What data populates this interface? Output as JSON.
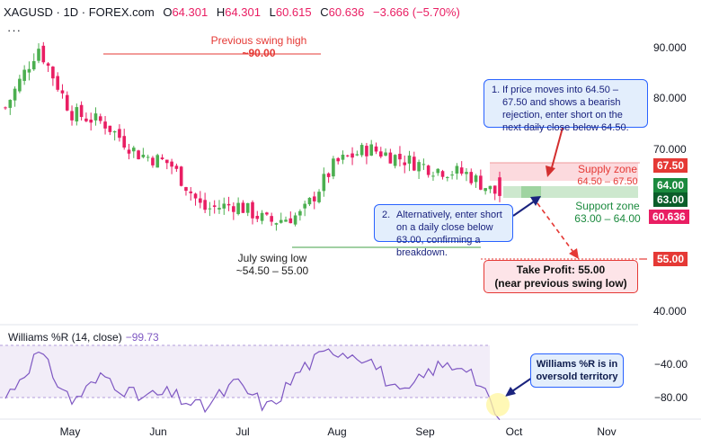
{
  "header": {
    "symbol": "XAGUSD",
    "sep1": "·",
    "interval": "1D",
    "sep2": "·",
    "source": "FOREX.com",
    "o_label": "O",
    "o": "64.301",
    "h_label": "H",
    "h": "64.301",
    "l_label": "L",
    "l": "60.615",
    "c_label": "C",
    "c": "60.636",
    "change": "−3.666 (−5.70%)",
    "more": "···"
  },
  "williams": {
    "label": "Williams %R (14, close)",
    "value": "−99.73"
  },
  "annotations": {
    "prev_high_line1": "Previous swing high",
    "prev_high_line2": "~90.00",
    "july_low_line1": "July swing low",
    "july_low_line2": "~54.50 – 55.00",
    "supply_line1": "Supply zone",
    "supply_line2": "64.50 – 67.50",
    "support_line1": "Support zone",
    "support_line2": "63.00 – 64.00",
    "note1_num": "1.",
    "note1_text": "If price moves into 64.50 – 67.50 and shows a bearish rejection, enter short on the next daily close below 64.50.",
    "note2_num": "2.",
    "note2_text": "Alternatively, enter short on a daily close below 63.00, confirming a breakdown.",
    "tp_line1": "Take Profit: 55.00",
    "tp_line2": "(near previous swing low)",
    "note3_text": "Williams %R is in oversold territory"
  },
  "price_axis": {
    "ticks": [
      "90.000",
      "80.000",
      "70.000",
      "40.000"
    ]
  },
  "price_tags": {
    "supply": "67.50",
    "z64": "64.00",
    "z63": "63.00",
    "last": "60.636",
    "tp": "55.00"
  },
  "wr_axis": {
    "ticks": [
      "−40.00",
      "−80.00"
    ]
  },
  "months": [
    "May",
    "Jun",
    "Jul",
    "Aug",
    "Sep",
    "Oct",
    "Nov"
  ],
  "colors": {
    "up": "#26a69a",
    "down": "#ef5350",
    "up_candle": "#4caf50",
    "down_candle": "#e91e63",
    "wr_line": "#7e57c2",
    "note_border": "#2962ff"
  },
  "chart_data": [
    {
      "type": "candlestick",
      "symbol": "XAGUSD",
      "interval": "1D",
      "x_months": [
        "May",
        "Jun",
        "Jul",
        "Aug",
        "Sep",
        "Oct",
        "Nov"
      ],
      "y_ticks": [
        40,
        70,
        80,
        90
      ],
      "approx_close_path": [
        [
          "May",
          78
        ],
        [
          "mid-May",
          90
        ],
        [
          "late-May",
          77
        ],
        [
          "Jun",
          75
        ],
        [
          "mid-Jun",
          69
        ],
        [
          "late-Jun",
          67
        ],
        [
          "Jul",
          58
        ],
        [
          "mid-Jul",
          59
        ],
        [
          "late-Jul",
          55.5
        ],
        [
          "Aug",
          57
        ],
        [
          "mid-Aug",
          67
        ],
        [
          "late-Aug",
          70
        ],
        [
          "Sep",
          68
        ],
        [
          "mid-Sep",
          66
        ],
        [
          "late-Sep",
          65
        ],
        [
          "Oct",
          60.636
        ]
      ],
      "levels": {
        "previous_swing_high": 90.0,
        "supply_zone": [
          64.5,
          67.5
        ],
        "support_zone": [
          63.0,
          64.0
        ],
        "take_profit": 55.0,
        "july_swing_low": [
          54.5,
          55.0
        ]
      },
      "last": {
        "open": 64.301,
        "high": 64.301,
        "low": 60.615,
        "close": 60.636
      }
    },
    {
      "type": "line",
      "name": "Williams %R (14, close)",
      "y_ticks": [
        -40,
        -80
      ],
      "approx_values": [
        [
          "May",
          -70
        ],
        [
          "mid-May",
          -10
        ],
        [
          "late-May",
          -75
        ],
        [
          "Jun",
          -40
        ],
        [
          "mid-Jun",
          -70
        ],
        [
          "late-Jun",
          -65
        ],
        [
          "Jul",
          -85
        ],
        [
          "mid-Jul",
          -50
        ],
        [
          "late-Jul",
          -85
        ],
        [
          "Aug",
          -30
        ],
        [
          "mid-Aug",
          -5
        ],
        [
          "late-Aug",
          -15
        ],
        [
          "Sep",
          -70
        ],
        [
          "mid-Sep",
          -30
        ],
        [
          "late-Sep",
          -25
        ],
        [
          "Oct",
          -99.73
        ]
      ],
      "last": -99.73
    }
  ]
}
